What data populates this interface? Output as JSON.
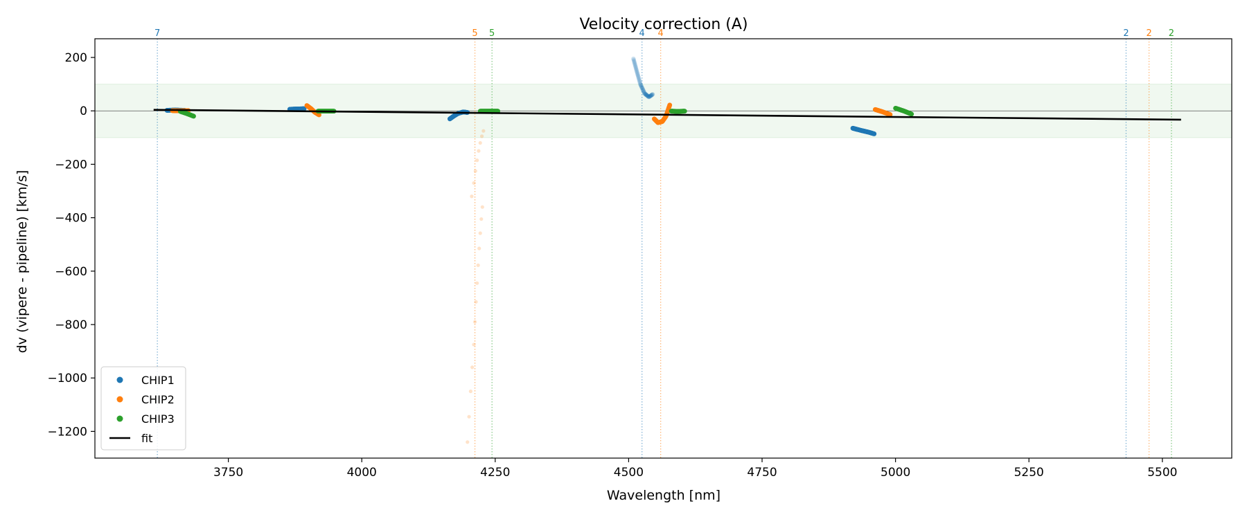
{
  "chart_data": {
    "type": "scatter",
    "title": "Velocity correction (A)",
    "xlabel": "Wavelength [nm]",
    "ylabel": "dv (vipere - pipeline) [km/s]",
    "xlim": [
      3500,
      5630
    ],
    "ylim": [
      -1300,
      270
    ],
    "xticks": [
      3750,
      4000,
      4250,
      4500,
      4750,
      5000,
      5250,
      5500
    ],
    "yticks": [
      200,
      0,
      -200,
      -400,
      -600,
      -800,
      -1000,
      -1200
    ],
    "xtick_labels": [
      "3750",
      "4000",
      "4250",
      "4500",
      "4750",
      "5000",
      "5250",
      "5500"
    ],
    "ytick_labels": [
      "200",
      "0",
      "−200",
      "−400",
      "−600",
      "−800",
      "−1000",
      "−1200"
    ],
    "band": {
      "low": -100,
      "high": 100,
      "color": "#2ca02c"
    },
    "zero_line": 0,
    "colors": {
      "CHIP1": "#1f77b4",
      "CHIP2": "#ff7f0e",
      "CHIP3": "#2ca02c",
      "fit": "#000000"
    },
    "legend": {
      "position": "lower-left",
      "entries": [
        {
          "label": "CHIP1",
          "kind": "marker",
          "series": "CHIP1"
        },
        {
          "label": "CHIP2",
          "kind": "marker",
          "series": "CHIP2"
        },
        {
          "label": "CHIP3",
          "kind": "marker",
          "series": "CHIP3"
        },
        {
          "label": "fit",
          "kind": "line",
          "series": "fit"
        }
      ]
    },
    "fit": {
      "x": [
        3610,
        5535
      ],
      "y": [
        4,
        -33
      ]
    },
    "vlines": [
      {
        "x": 3617,
        "label": "7",
        "series": "CHIP1"
      },
      {
        "x": 4212,
        "label": "5",
        "series": "CHIP2"
      },
      {
        "x": 4244,
        "label": "5",
        "series": "CHIP3"
      },
      {
        "x": 4525,
        "label": "4",
        "series": "CHIP1"
      },
      {
        "x": 4560,
        "label": "4",
        "series": "CHIP2"
      },
      {
        "x": 5432,
        "label": "2",
        "series": "CHIP1"
      },
      {
        "x": 5475,
        "label": "2",
        "series": "CHIP2"
      },
      {
        "x": 5517,
        "label": "2",
        "series": "CHIP3"
      }
    ],
    "segments": [
      {
        "series": "CHIP1",
        "order": 7,
        "x": [
          3635,
          3650,
          3668
        ],
        "y": [
          2,
          3,
          2
        ]
      },
      {
        "series": "CHIP2",
        "order": 7,
        "x": [
          3645,
          3660,
          3675
        ],
        "y": [
          1,
          0,
          1
        ]
      },
      {
        "series": "CHIP3",
        "order": 7,
        "x": [
          3660,
          3672,
          3685
        ],
        "y": [
          -2,
          -10,
          -20
        ]
      },
      {
        "series": "CHIP1",
        "order": 6,
        "x": [
          3865,
          3878,
          3892
        ],
        "y": [
          6,
          7,
          8
        ]
      },
      {
        "series": "CHIP2",
        "order": 6,
        "x": [
          3897,
          3905,
          3912,
          3920
        ],
        "y": [
          20,
          8,
          -5,
          -15
        ]
      },
      {
        "series": "CHIP3",
        "order": 6,
        "x": [
          3918,
          3932,
          3948
        ],
        "y": [
          -1,
          -1,
          -1
        ]
      },
      {
        "series": "CHIP1",
        "order": 5,
        "x": [
          4165,
          4172,
          4180,
          4190,
          4198
        ],
        "y": [
          -30,
          -20,
          -10,
          -4,
          -6
        ]
      },
      {
        "series": "CHIP3",
        "order": 5,
        "x": [
          4222,
          4238,
          4255
        ],
        "y": [
          -1,
          -1,
          -1
        ]
      },
      {
        "series": "CHIP2",
        "order": 4,
        "x": [
          4548,
          4555,
          4563,
          4570,
          4577
        ],
        "y": [
          -30,
          -44,
          -40,
          -20,
          22
        ]
      },
      {
        "series": "CHIP3",
        "order": 4,
        "x": [
          4580,
          4592,
          4605
        ],
        "y": [
          -1,
          -2,
          -1
        ]
      },
      {
        "series": "CHIP1",
        "order": 3,
        "x": [
          4920,
          4935,
          4950,
          4960
        ],
        "y": [
          -65,
          -73,
          -80,
          -86
        ]
      },
      {
        "series": "CHIP2",
        "order": 3,
        "x": [
          4962,
          4975,
          4990
        ],
        "y": [
          5,
          -3,
          -14
        ]
      },
      {
        "series": "CHIP3",
        "order": 3,
        "x": [
          5000,
          5015,
          5030
        ],
        "y": [
          10,
          0,
          -12
        ]
      }
    ],
    "faded_segments": [
      {
        "series": "CHIP1",
        "order": 4,
        "x": [
          4509,
          4515,
          4522,
          4530,
          4538,
          4545
        ],
        "y": [
          195,
          150,
          100,
          65,
          52,
          62
        ]
      }
    ],
    "outliers_chip2": {
      "x": [
        4198,
        4201,
        4204,
        4207,
        4210,
        4212,
        4214,
        4216,
        4218,
        4220,
        4222,
        4224,
        4226
      ],
      "y": [
        -1240,
        -1145,
        -1050,
        -960,
        -875,
        -790,
        -715,
        -645,
        -578,
        -515,
        -458,
        -405,
        -360
      ],
      "x2": [
        4206,
        4210,
        4213,
        4216,
        4219,
        4222,
        4225,
        4228
      ],
      "y2": [
        -320,
        -270,
        -225,
        -185,
        -150,
        -120,
        -95,
        -75
      ]
    }
  }
}
